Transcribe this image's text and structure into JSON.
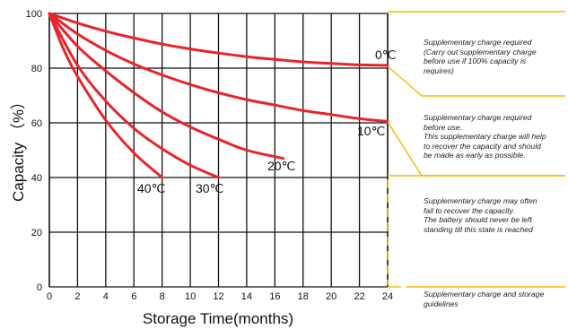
{
  "chart_data": {
    "type": "line",
    "xlabel": "Storage Time(months)",
    "ylabel": "Capacity （%）",
    "xlim": [
      0,
      24
    ],
    "ylim": [
      0,
      100
    ],
    "x_ticks": [
      0,
      2,
      4,
      6,
      8,
      10,
      12,
      14,
      16,
      18,
      20,
      22,
      24
    ],
    "y_ticks": [
      0,
      20,
      40,
      60,
      80,
      100
    ],
    "grid": true,
    "line_color": "#e8242b",
    "series": [
      {
        "name": "0℃",
        "x": [
          0,
          2,
          4,
          6,
          8,
          10,
          12,
          14,
          16,
          18,
          20,
          22,
          24
        ],
        "y": [
          100,
          96.5,
          93.5,
          91,
          88.8,
          87,
          85.5,
          84.2,
          83.2,
          82.3,
          81.7,
          81.2,
          81
        ]
      },
      {
        "name": "10℃",
        "x": [
          0,
          2,
          4,
          6,
          8,
          10,
          12,
          14,
          16,
          18,
          20,
          22,
          24
        ],
        "y": [
          100,
          92.5,
          86.5,
          81.5,
          77.5,
          74,
          71,
          68.5,
          66.5,
          64.5,
          63,
          61.5,
          60.5
        ]
      },
      {
        "name": "20℃",
        "x": [
          0,
          2,
          4,
          6,
          8,
          10,
          12,
          14,
          16.6
        ],
        "y": [
          100,
          88,
          79,
          71,
          64,
          58.5,
          54,
          50,
          47
        ]
      },
      {
        "name": "30℃",
        "x": [
          0,
          2,
          4,
          6,
          8,
          10,
          12
        ],
        "y": [
          100,
          81,
          68,
          58,
          50.5,
          44.5,
          40
        ]
      },
      {
        "name": "40℃",
        "x": [
          0,
          1,
          2,
          4,
          6,
          8
        ],
        "y": [
          100,
          87,
          77,
          61,
          49,
          40
        ]
      }
    ],
    "annotations": [
      "Supplementary charge required\n(Carry out supplementary charge\nbefore use if 100% capacity is\nrequires)",
      "Supplementary charge required\nbefore use.\nThis supplementary charge will help\nto recover the capacity and should\nbe made  as early as possible.",
      "Supplementary charge may often\nfail to recover the capacity.\nThe battery should never be left\nstanding till this state is reached",
      "Supplementary charge and storage\nguidelines"
    ],
    "annotation_color": "#f5b800"
  }
}
